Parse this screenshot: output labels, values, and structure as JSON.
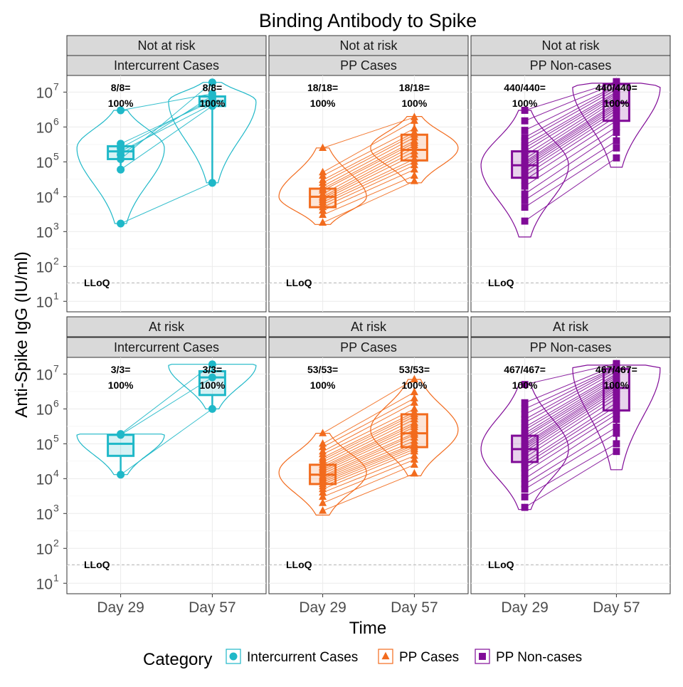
{
  "chart_data": {
    "type": "box-violin",
    "title": "Binding Antibody to Spike",
    "xlabel": "Time",
    "ylabel": "Anti-Spike IgG (IU/ml)",
    "x_categories": [
      "Day 29",
      "Day 57"
    ],
    "y_scale": "log10",
    "y_range": [
      5,
      30000000
    ],
    "y_ticks": [
      10,
      100,
      1000,
      10000,
      100000,
      1000000,
      10000000
    ],
    "y_tick_labels": [
      {
        "base": "10",
        "exp": "1"
      },
      {
        "base": "10",
        "exp": "2"
      },
      {
        "base": "10",
        "exp": "3"
      },
      {
        "base": "10",
        "exp": "4"
      },
      {
        "base": "10",
        "exp": "5"
      },
      {
        "base": "10",
        "exp": "6"
      },
      {
        "base": "10",
        "exp": "7"
      }
    ],
    "lloq": {
      "label": "LLoQ",
      "value": 34
    },
    "legend": {
      "title": "Category",
      "position": "bottom",
      "items": [
        {
          "name": "Intercurrent Cases",
          "color": "#1fb8c8",
          "shape": "circle"
        },
        {
          "name": "PP Cases",
          "color": "#f26b1d",
          "shape": "triangle"
        },
        {
          "name": "PP Non-cases",
          "color": "#800b97",
          "shape": "square"
        }
      ]
    },
    "panels": [
      {
        "row_label": "Not at risk",
        "col_label": "Intercurrent Cases",
        "category": 0,
        "annotations": [
          {
            "frac": "8/8=",
            "pct": "100%"
          },
          {
            "frac": "8/8=",
            "pct": "100%"
          }
        ],
        "boxes": [
          {
            "q1": 120000,
            "median": 200000,
            "q3": 280000,
            "whisker_low": 60000,
            "whisker_high": 320000
          },
          {
            "q1": 4000000,
            "median": 5500000,
            "q3": 7500000,
            "whisker_low": 25000,
            "whisker_high": 19000000
          }
        ],
        "violins": [
          {
            "low": 1700,
            "high": 3000000,
            "peak": 250000
          },
          {
            "low": 25000,
            "high": 19000000,
            "peak": 5500000
          }
        ],
        "paired_points": [
          [
            3000000,
            9000000
          ],
          [
            330000,
            5500000
          ],
          [
            250000,
            6500000
          ],
          [
            200000,
            4500000
          ],
          [
            160000,
            8000000
          ],
          [
            120000,
            19000000
          ],
          [
            60000,
            4000000
          ],
          [
            1700,
            25000
          ]
        ]
      },
      {
        "row_label": "Not at risk",
        "col_label": "PP Cases",
        "category": 1,
        "annotations": [
          {
            "frac": "18/18=",
            "pct": "100%"
          },
          {
            "frac": "18/18=",
            "pct": "100%"
          }
        ],
        "boxes": [
          {
            "q1": 5000,
            "median": 10000,
            "q3": 17000,
            "whisker_low": 2500,
            "whisker_high": 40000
          },
          {
            "q1": 110000,
            "median": 220000,
            "q3": 600000,
            "whisker_low": 30000,
            "whisker_high": 1900000
          }
        ],
        "violins": [
          {
            "low": 1600,
            "high": 250000,
            "peak": 10000
          },
          {
            "low": 25000,
            "high": 2000000,
            "peak": 250000
          }
        ],
        "paired_points": [
          [
            250000,
            1900000
          ],
          [
            50000,
            1500000
          ],
          [
            40000,
            900000
          ],
          [
            30000,
            700000
          ],
          [
            25000,
            600000
          ],
          [
            20000,
            500000
          ],
          [
            17000,
            400000
          ],
          [
            15000,
            350000
          ],
          [
            12000,
            300000
          ],
          [
            10000,
            250000
          ],
          [
            9000,
            200000
          ],
          [
            8000,
            160000
          ],
          [
            7000,
            120000
          ],
          [
            6000,
            100000
          ],
          [
            5000,
            80000
          ],
          [
            4000,
            60000
          ],
          [
            3000,
            40000
          ],
          [
            1800,
            28000
          ]
        ]
      },
      {
        "row_label": "Not at risk",
        "col_label": "PP Non-cases",
        "category": 2,
        "annotations": [
          {
            "frac": "440/440=",
            "pct": "100%"
          },
          {
            "frac": "440/440=",
            "pct": "100%"
          }
        ],
        "boxes": [
          {
            "q1": 35000,
            "median": 80000,
            "q3": 200000,
            "whisker_low": 7000,
            "whisker_high": 600000
          },
          {
            "q1": 1500000,
            "median": 5000000,
            "q3": 17000000,
            "whisker_low": 400000,
            "whisker_high": 22000000
          }
        ],
        "violins": [
          {
            "low": 700,
            "high": 3000000,
            "peak": 80000
          },
          {
            "low": 70000,
            "high": 18000000,
            "peak": 14000000
          }
        ],
        "paired_points": [
          [
            3000000,
            20000000
          ],
          [
            1500000,
            18000000
          ],
          [
            800000,
            15000000
          ],
          [
            500000,
            14000000
          ],
          [
            400000,
            12000000
          ],
          [
            300000,
            10000000
          ],
          [
            250000,
            9000000
          ],
          [
            200000,
            8000000
          ],
          [
            150000,
            7000000
          ],
          [
            120000,
            6000000
          ],
          [
            100000,
            5000000
          ],
          [
            90000,
            4500000
          ],
          [
            80000,
            4000000
          ],
          [
            70000,
            3500000
          ],
          [
            60000,
            3000000
          ],
          [
            50000,
            2500000
          ],
          [
            40000,
            2000000
          ],
          [
            30000,
            1500000
          ],
          [
            20000,
            1000000
          ],
          [
            12000,
            700000
          ],
          [
            8000,
            400000
          ],
          [
            5000,
            250000
          ],
          [
            2000,
            130000
          ]
        ]
      },
      {
        "row_label": "At risk",
        "col_label": "Intercurrent Cases",
        "category": 0,
        "annotations": [
          {
            "frac": "3/3=",
            "pct": "100%"
          },
          {
            "frac": "3/3=",
            "pct": "100%"
          }
        ],
        "boxes": [
          {
            "q1": 45000,
            "median": 100000,
            "q3": 180000,
            "whisker_low": 13000,
            "whisker_high": 190000
          },
          {
            "q1": 2500000,
            "median": 8000000,
            "q3": 12000000,
            "whisker_low": 1000000,
            "whisker_high": 19000000
          }
        ],
        "violins": [
          {
            "low": 13000,
            "high": 190000,
            "peak": 180000
          },
          {
            "low": 1000000,
            "high": 19000000,
            "peak": 18000000
          }
        ],
        "paired_points": [
          [
            190000,
            19000000
          ],
          [
            180000,
            8000000
          ],
          [
            13000,
            1000000
          ]
        ]
      },
      {
        "row_label": "At risk",
        "col_label": "PP Cases",
        "category": 1,
        "annotations": [
          {
            "frac": "53/53=",
            "pct": "100%"
          },
          {
            "frac": "53/53=",
            "pct": "100%"
          }
        ],
        "boxes": [
          {
            "q1": 7000,
            "median": 13000,
            "q3": 25000,
            "whisker_low": 2500,
            "whisker_high": 70000
          },
          {
            "q1": 80000,
            "median": 200000,
            "q3": 700000,
            "whisker_low": 30000,
            "whisker_high": 4000000
          }
        ],
        "violins": [
          {
            "low": 900,
            "high": 200000,
            "peak": 15000
          },
          {
            "low": 12000,
            "high": 7000000,
            "peak": 250000
          }
        ],
        "paired_points": [
          [
            200000,
            7000000
          ],
          [
            100000,
            3000000
          ],
          [
            80000,
            2000000
          ],
          [
            60000,
            1500000
          ],
          [
            50000,
            1000000
          ],
          [
            40000,
            800000
          ],
          [
            35000,
            700000
          ],
          [
            30000,
            600000
          ],
          [
            25000,
            500000
          ],
          [
            22000,
            400000
          ],
          [
            20000,
            350000
          ],
          [
            18000,
            300000
          ],
          [
            16000,
            250000
          ],
          [
            14000,
            200000
          ],
          [
            12000,
            180000
          ],
          [
            11000,
            150000
          ],
          [
            10000,
            120000
          ],
          [
            9000,
            100000
          ],
          [
            8000,
            90000
          ],
          [
            7000,
            80000
          ],
          [
            6000,
            70000
          ],
          [
            5000,
            60000
          ],
          [
            4000,
            45000
          ],
          [
            3000,
            35000
          ],
          [
            2000,
            25000
          ],
          [
            1200,
            14000
          ]
        ]
      },
      {
        "row_label": "At risk",
        "col_label": "PP Non-cases",
        "category": 2,
        "annotations": [
          {
            "frac": "467/467=",
            "pct": "100%"
          },
          {
            "frac": "467/467=",
            "pct": "100%"
          }
        ],
        "boxes": [
          {
            "q1": 30000,
            "median": 70000,
            "q3": 170000,
            "whisker_low": 5000,
            "whisker_high": 900000
          },
          {
            "q1": 900000,
            "median": 4000000,
            "q3": 14000000,
            "whisker_low": 100000,
            "whisker_high": 22000000
          }
        ],
        "violins": [
          {
            "low": 1300,
            "high": 5000000,
            "peak": 70000
          },
          {
            "low": 18000,
            "high": 18000000,
            "peak": 15000000
          }
        ],
        "paired_points": [
          [
            5000000,
            20000000
          ],
          [
            1500000,
            18000000
          ],
          [
            1000000,
            16000000
          ],
          [
            700000,
            15000000
          ],
          [
            500000,
            14000000
          ],
          [
            400000,
            12000000
          ],
          [
            300000,
            10000000
          ],
          [
            250000,
            9000000
          ],
          [
            200000,
            8000000
          ],
          [
            170000,
            7000000
          ],
          [
            150000,
            6000000
          ],
          [
            120000,
            5500000
          ],
          [
            100000,
            5000000
          ],
          [
            90000,
            4500000
          ],
          [
            80000,
            4000000
          ],
          [
            70000,
            3500000
          ],
          [
            60000,
            3000000
          ],
          [
            50000,
            2500000
          ],
          [
            40000,
            2000000
          ],
          [
            30000,
            1500000
          ],
          [
            25000,
            1200000
          ],
          [
            20000,
            900000
          ],
          [
            15000,
            700000
          ],
          [
            10000,
            500000
          ],
          [
            7000,
            300000
          ],
          [
            5000,
            200000
          ],
          [
            3000,
            100000
          ],
          [
            1500,
            60000
          ]
        ]
      }
    ]
  }
}
